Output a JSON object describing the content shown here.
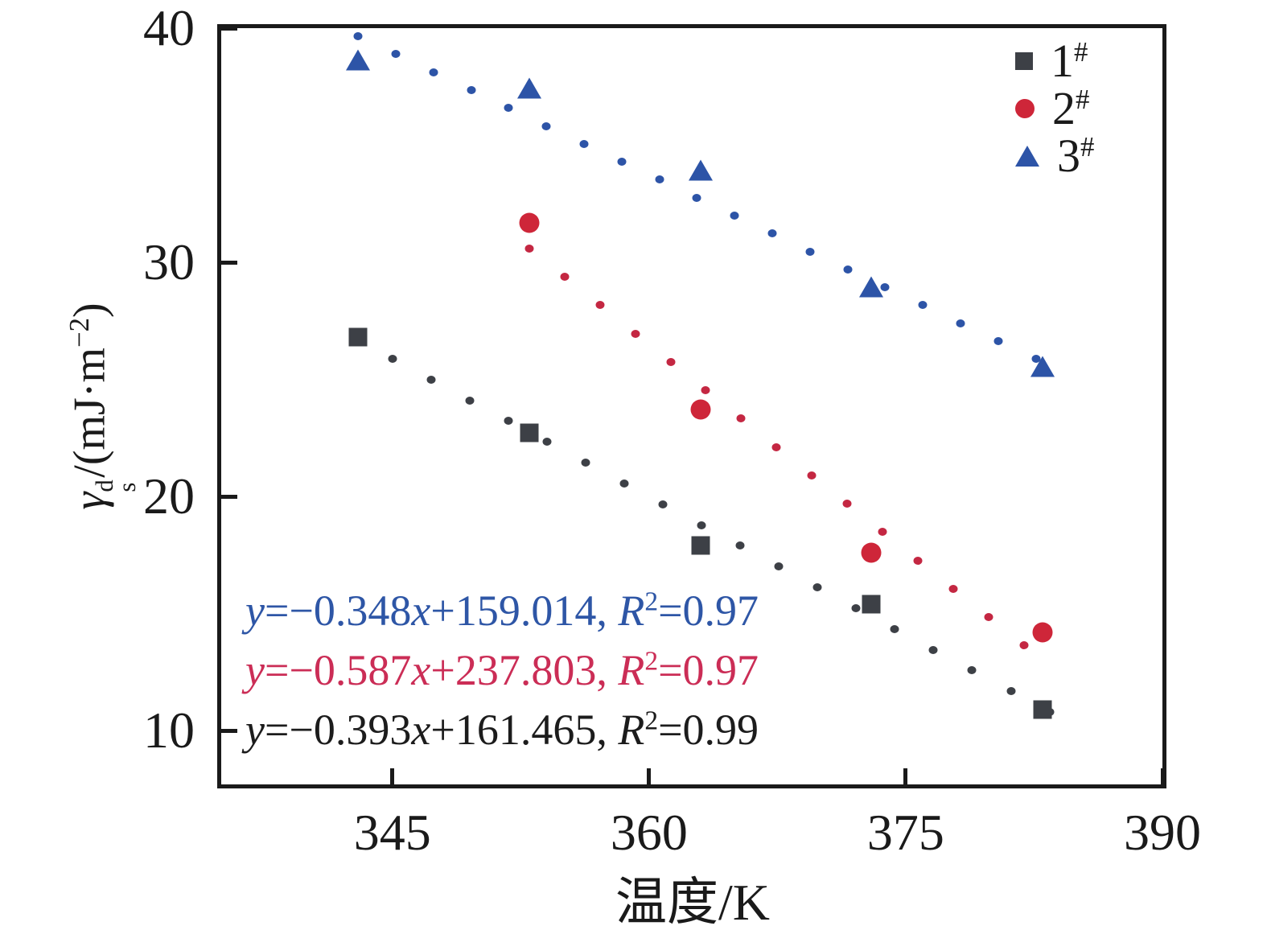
{
  "figure": {
    "x_axis": {
      "title": "温度/K",
      "tick_labels": [
        "345",
        "360",
        "375",
        "390"
      ]
    },
    "y_axis": {
      "title_parts": {
        "gamma": "γ",
        "sup": "d",
        "sub": "s",
        "rest_open": "/(mJ·m",
        "exponent": "−2",
        "rest_close": ")"
      },
      "tick_labels": [
        "10",
        "20",
        "30",
        "40"
      ]
    },
    "legend": [
      {
        "label": "1",
        "sup": "#"
      },
      {
        "label": "2",
        "sup": "#"
      },
      {
        "label": "3",
        "sup": "#"
      }
    ]
  },
  "annotations": [
    {
      "series": "3#",
      "color": "#2e56a6",
      "parts": [
        {
          "t": "y",
          "i": 1
        },
        {
          "t": "=−0.348"
        },
        {
          "t": "x",
          "i": 1
        },
        {
          "t": "+159.014, "
        },
        {
          "t": "R",
          "i": 1
        },
        {
          "t": "2",
          "sup": 1
        },
        {
          "t": "=0.97"
        }
      ]
    },
    {
      "series": "2#",
      "color": "#cb2d56",
      "parts": [
        {
          "t": "y",
          "i": 1
        },
        {
          "t": "=−0.587"
        },
        {
          "t": "x",
          "i": 1
        },
        {
          "t": "+237.803, "
        },
        {
          "t": "R",
          "i": 1
        },
        {
          "t": "2",
          "sup": 1
        },
        {
          "t": "=0.97"
        }
      ]
    },
    {
      "series": "1#",
      "color": "#1c1c1c",
      "parts": [
        {
          "t": "y",
          "i": 1
        },
        {
          "t": "=−0.393"
        },
        {
          "t": "x",
          "i": 1
        },
        {
          "t": "+161.465, "
        },
        {
          "t": "R",
          "i": 1
        },
        {
          "t": "2",
          "sup": 1
        },
        {
          "t": "=0.99"
        }
      ]
    }
  ],
  "chart_data": {
    "type": "scatter",
    "title": "",
    "xlabel": "温度/K",
    "ylabel": "γs^d/(mJ·m−2)",
    "xlim": [
      335,
      390
    ],
    "ylim": [
      7.7,
      40
    ],
    "x_ticks": [
      345,
      360,
      375,
      390
    ],
    "y_ticks": [
      10,
      20,
      30,
      40
    ],
    "grid": false,
    "legend_position": "top-right-inside",
    "series": [
      {
        "name": "1#",
        "marker": "square",
        "color": "#3d4046",
        "x": [
          343,
          353,
          363,
          373,
          383
        ],
        "y": [
          26.8,
          22.7,
          17.9,
          15.4,
          10.9
        ],
        "fit": {
          "equation": "y=−0.393x+161.465",
          "r2": 0.99,
          "slope": -0.393,
          "intercept": 161.465,
          "x_start": 345.0,
          "x_end": 383.4,
          "dots": 18,
          "dot_color": "#3d4046",
          "text_color": "#1c1c1c"
        }
      },
      {
        "name": "2#",
        "marker": "circle",
        "color": "#ce2639",
        "x": [
          353,
          363,
          373,
          383
        ],
        "y": [
          31.7,
          23.7,
          17.6,
          14.2
        ],
        "fit": {
          "equation": "y=−0.587x+237.803",
          "r2": 0.97,
          "slope": -0.587,
          "intercept": 237.803,
          "x_start": 353.0,
          "x_end": 381.9,
          "dots": 15,
          "dot_color": "#c42742",
          "text_color": "#cb2d56"
        }
      },
      {
        "name": "3#",
        "marker": "triangle",
        "color": "#2d54a7",
        "x": [
          343,
          353,
          363,
          373,
          383
        ],
        "y": [
          38.6,
          37.4,
          33.9,
          28.9,
          25.5
        ],
        "fit": {
          "equation": "y=−0.348x+159.014",
          "r2": 0.97,
          "slope": -0.348,
          "intercept": 159.014,
          "x_start": 343.0,
          "x_end": 382.6,
          "dots": 19,
          "dot_color": "#2d54a7",
          "text_color": "#2e56a6"
        }
      }
    ]
  }
}
